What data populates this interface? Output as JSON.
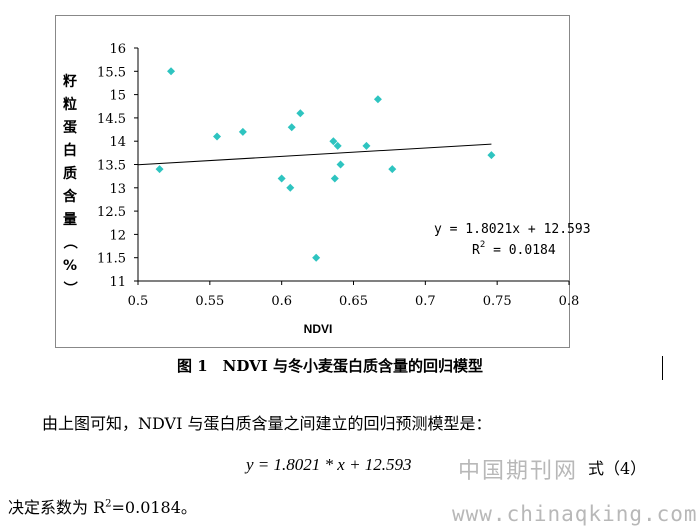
{
  "chart_data": {
    "type": "scatter",
    "ylabel": "籽粒蛋白质含量（%）",
    "xlabel": "NDVI",
    "xlim": [
      0.5,
      0.8
    ],
    "ylim": [
      11,
      16
    ],
    "x_ticks": [
      "0.5",
      "0.55",
      "0.6",
      "0.65",
      "0.7",
      "0.75",
      "0.8"
    ],
    "y_ticks": [
      "11",
      "11.5",
      "12",
      "12.5",
      "13",
      "13.5",
      "14",
      "14.5",
      "15",
      "15.5",
      "16"
    ],
    "marker_color": "#2ec4c0",
    "grid": false,
    "points": [
      {
        "x": 0.523,
        "y": 15.5
      },
      {
        "x": 0.515,
        "y": 13.4
      },
      {
        "x": 0.555,
        "y": 14.1
      },
      {
        "x": 0.573,
        "y": 14.2
      },
      {
        "x": 0.6,
        "y": 13.2
      },
      {
        "x": 0.606,
        "y": 13.0
      },
      {
        "x": 0.607,
        "y": 14.3
      },
      {
        "x": 0.613,
        "y": 14.6
      },
      {
        "x": 0.624,
        "y": 11.5
      },
      {
        "x": 0.636,
        "y": 14.0
      },
      {
        "x": 0.637,
        "y": 13.2
      },
      {
        "x": 0.639,
        "y": 13.9
      },
      {
        "x": 0.641,
        "y": 13.5
      },
      {
        "x": 0.659,
        "y": 13.9
      },
      {
        "x": 0.667,
        "y": 14.9
      },
      {
        "x": 0.677,
        "y": 13.4
      },
      {
        "x": 0.746,
        "y": 13.7
      }
    ],
    "trendline": {
      "slope": 1.8021,
      "intercept": 12.593,
      "x_range": [
        0.5,
        0.746
      ]
    },
    "equation": "y = 1.8021x + 12.593",
    "r2_label": "R",
    "r2_sup": "2",
    "r2_value": " = 0.0184"
  },
  "caption": "图 1　NDVI 与冬小麦蛋白质含量的回归模型",
  "paragraph1": "由上图可知，NDVI 与蛋白质含量之间建立的回归预测模型是：",
  "formula": "y = 1.8021 * x + 12.593",
  "equation_number": "式（4）",
  "paragraph2_prefix": "决定系数为 R",
  "paragraph2_sup": "2",
  "paragraph2_suffix": "=0.0184。",
  "watermark_cn": "中国期刊网",
  "watermark_url": "www.chinaqking.com"
}
